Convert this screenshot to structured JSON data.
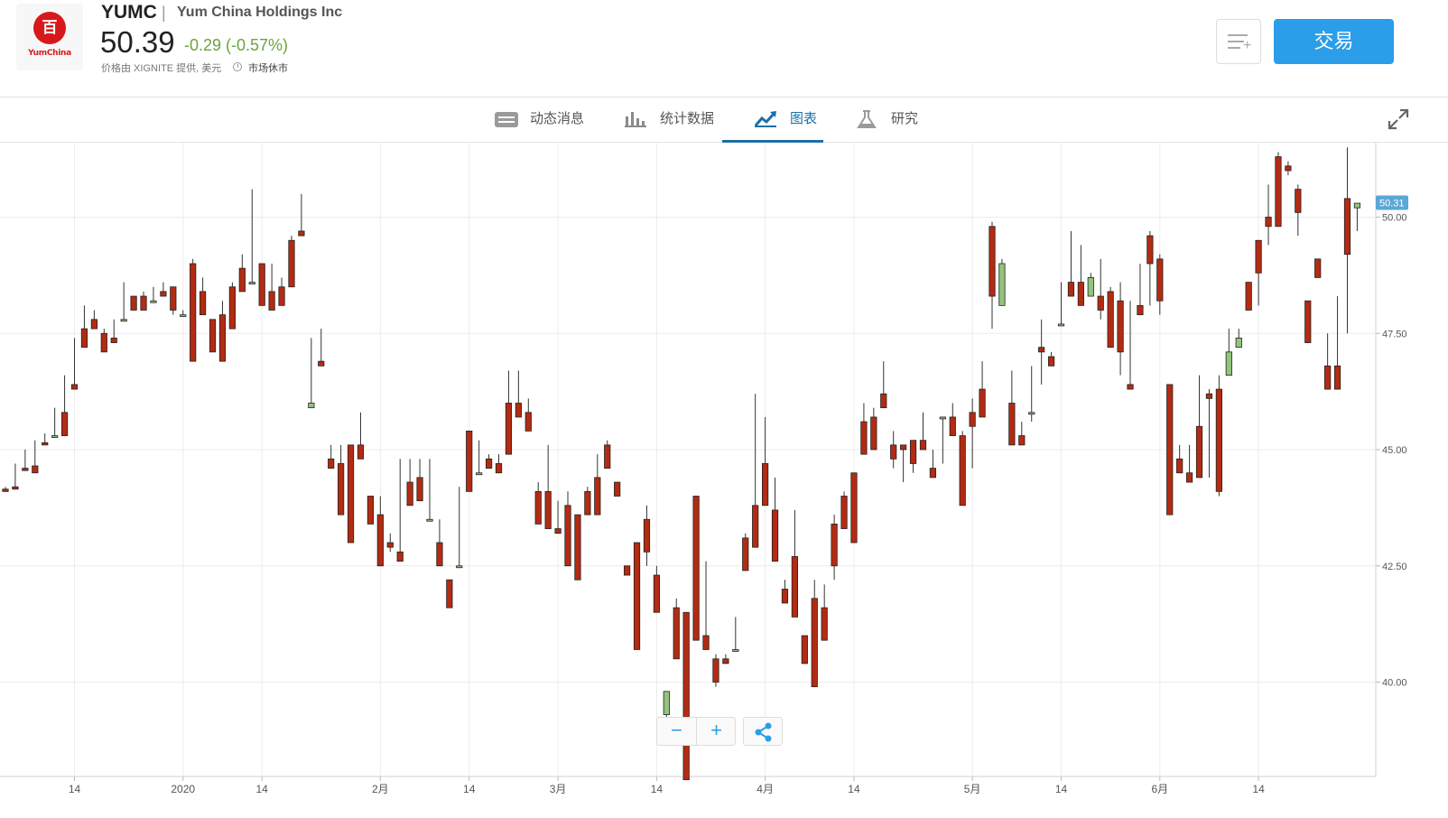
{
  "header": {
    "logo_glyph": "百",
    "logo_text": "YumChina",
    "ticker": "YUMC",
    "separator": "|",
    "company": "Yum China Holdings Inc",
    "price": "50.39",
    "change": "-0.29 (-0.57%)",
    "change_color": "#6aa43a",
    "provider": "价格由 XIGNITE 提供, 美元",
    "market_status": "市场休市",
    "watchlist_icon": "add-to-list-icon",
    "trade_label": "交易"
  },
  "tabs": [
    {
      "label": "动态消息",
      "icon": "news-icon",
      "active": false
    },
    {
      "label": "统计数据",
      "icon": "bar-stats-icon",
      "active": false
    },
    {
      "label": "图表",
      "icon": "chart-trend-icon",
      "active": true
    },
    {
      "label": "研究",
      "icon": "flask-icon",
      "active": false
    }
  ],
  "colors": {
    "up": "#93c47d",
    "down": "#b32b12",
    "accent": "#2a9ee8",
    "tab_active": "#1d6fa8",
    "last_price_tag": "#5ba7d6"
  },
  "controls": {
    "zoom_out": "−",
    "zoom_in": "+",
    "share_icon": "share-icon",
    "expand_icon": "expand-icon"
  },
  "chart_data": {
    "type": "candlestick",
    "last_price_label": "50.31",
    "y_ticks": [
      40.0,
      42.5,
      45.0,
      47.5,
      50.0
    ],
    "y_tick_labels": [
      "40.00",
      "42.50",
      "45.00",
      "47.50",
      "50.00"
    ],
    "x_ticks": [
      {
        "index": 7,
        "label": "14"
      },
      {
        "index": 18,
        "label": "2020"
      },
      {
        "index": 26,
        "label": "14"
      },
      {
        "index": 38,
        "label": "2月"
      },
      {
        "index": 47,
        "label": "14"
      },
      {
        "index": 56,
        "label": "3月"
      },
      {
        "index": 66,
        "label": "14"
      },
      {
        "index": 77,
        "label": "4月"
      },
      {
        "index": 86,
        "label": "14"
      },
      {
        "index": 98,
        "label": "5月"
      },
      {
        "index": 107,
        "label": "14"
      },
      {
        "index": 117,
        "label": "6月"
      },
      {
        "index": 127,
        "label": "14"
      }
    ],
    "candles": [
      [
        44.15,
        44.1,
        44.2,
        44.2
      ],
      [
        44.2,
        44.15,
        44.7,
        44.6
      ],
      [
        44.6,
        44.55,
        45.0,
        44.85
      ],
      [
        44.65,
        44.5,
        45.2,
        45.15
      ],
      [
        45.15,
        45.1,
        45.35,
        45.3
      ],
      [
        45.3,
        45.3,
        45.9,
        45.8
      ],
      [
        45.8,
        45.3,
        46.6,
        46.4
      ],
      [
        46.4,
        46.3,
        47.4,
        47.6
      ],
      [
        47.6,
        47.2,
        48.1,
        47.9
      ],
      [
        47.8,
        47.6,
        48.0,
        47.7
      ],
      [
        47.5,
        47.1,
        47.6,
        47.4
      ],
      [
        47.4,
        47.3,
        47.8,
        47.8
      ],
      [
        47.8,
        47.8,
        48.6,
        48.3
      ],
      [
        48.3,
        48.0,
        48.3,
        48.6
      ],
      [
        48.3,
        48.0,
        48.4,
        48.2
      ],
      [
        48.2,
        48.2,
        48.5,
        48.4
      ],
      [
        48.4,
        48.3,
        48.6,
        48.5
      ],
      [
        48.5,
        48.0,
        48.5,
        47.9
      ],
      [
        47.9,
        47.9,
        48.0,
        48.0
      ],
      [
        49.0,
        46.9,
        49.1,
        46.9
      ],
      [
        48.4,
        47.9,
        48.7,
        48.3
      ],
      [
        47.8,
        47.1,
        47.8,
        47.7
      ],
      [
        47.9,
        46.9,
        48.2,
        47.4
      ],
      [
        48.5,
        47.6,
        48.6,
        47.7
      ],
      [
        48.9,
        48.4,
        49.2,
        48.5
      ],
      [
        48.6,
        48.6,
        50.6,
        50.2
      ],
      [
        49.0,
        48.1,
        49.0,
        48.2
      ],
      [
        48.4,
        48.0,
        49.0,
        48.6
      ],
      [
        48.5,
        48.1,
        48.7,
        48.2
      ],
      [
        49.5,
        48.5,
        49.6,
        48.5
      ],
      [
        49.7,
        49.6,
        50.5,
        49.6
      ],
      [
        45.9,
        46.0,
        47.4,
        47.3
      ],
      [
        46.9,
        46.8,
        47.6,
        46.9
      ],
      [
        44.8,
        44.6,
        45.1,
        45.0
      ],
      [
        44.7,
        43.6,
        45.1,
        44.1
      ],
      [
        45.1,
        43.0,
        45.1,
        43.0
      ],
      [
        45.1,
        44.8,
        45.8,
        44.9
      ],
      [
        44.0,
        43.4,
        44.0,
        43.5
      ],
      [
        43.6,
        42.5,
        44.0,
        43.2
      ],
      [
        43.0,
        42.9,
        43.2,
        42.8
      ],
      [
        42.8,
        42.6,
        44.8,
        42.6
      ],
      [
        44.3,
        43.8,
        44.8,
        43.8
      ],
      [
        44.4,
        43.9,
        44.8,
        44.4
      ],
      [
        43.5,
        43.5,
        44.8,
        43.9
      ],
      [
        43.0,
        42.5,
        43.5,
        43.5
      ],
      [
        42.2,
        41.6,
        42.2,
        42.0
      ],
      [
        42.5,
        42.5,
        44.2,
        43.9
      ],
      [
        45.4,
        44.1,
        45.4,
        44.1
      ],
      [
        44.5,
        44.5,
        45.2,
        45.8
      ],
      [
        44.8,
        44.6,
        44.9,
        45.0
      ],
      [
        44.7,
        44.5,
        44.9,
        44.9
      ],
      [
        46.0,
        44.9,
        46.7,
        45.0
      ],
      [
        46.0,
        45.7,
        46.7,
        45.9
      ],
      [
        45.8,
        45.4,
        46.1,
        45.7
      ],
      [
        44.1,
        43.4,
        44.3,
        43.4
      ],
      [
        44.1,
        43.3,
        45.1,
        43.4
      ],
      [
        43.3,
        43.2,
        43.9,
        43.8
      ],
      [
        43.8,
        42.5,
        44.1,
        42.5
      ],
      [
        43.6,
        42.2,
        43.6,
        42.2
      ],
      [
        44.1,
        43.6,
        44.2,
        44.1
      ],
      [
        44.4,
        43.6,
        44.9,
        43.6
      ],
      [
        45.1,
        44.6,
        45.2,
        44.6
      ],
      [
        44.3,
        44.0,
        44.3,
        44.2
      ],
      [
        42.5,
        42.3,
        42.5,
        42.3
      ],
      [
        43.0,
        40.7,
        43.0,
        40.7
      ],
      [
        43.5,
        42.8,
        43.8,
        42.5
      ],
      [
        42.3,
        41.5,
        42.5,
        41.5
      ],
      [
        39.3,
        39.8,
        39.8,
        39.2
      ],
      [
        41.6,
        40.5,
        41.8,
        40.5
      ],
      [
        41.5,
        37.9,
        41.5,
        38.2
      ],
      [
        44.0,
        40.9,
        44.0,
        43.4
      ],
      [
        41.0,
        40.7,
        42.6,
        40.9
      ],
      [
        40.5,
        40.0,
        40.6,
        39.9
      ],
      [
        40.5,
        40.4,
        40.6,
        40.5
      ],
      [
        40.7,
        40.7,
        41.4,
        41.5
      ],
      [
        43.1,
        42.4,
        43.2,
        43.0
      ],
      [
        43.8,
        42.9,
        46.2,
        44.4
      ],
      [
        44.7,
        43.8,
        45.7,
        44.7
      ],
      [
        43.7,
        42.6,
        44.4,
        42.6
      ],
      [
        42.0,
        41.7,
        42.2,
        42.2
      ],
      [
        42.7,
        41.4,
        43.7,
        41.4
      ],
      [
        41.0,
        40.4,
        41.0,
        41.0
      ],
      [
        41.8,
        39.9,
        42.2,
        41.9
      ],
      [
        41.6,
        40.9,
        42.1,
        41.4
      ],
      [
        43.4,
        42.5,
        43.6,
        42.2
      ],
      [
        44.0,
        43.3,
        44.1,
        43.6
      ],
      [
        44.5,
        43.0,
        44.5,
        43.0
      ],
      [
        45.6,
        44.9,
        46.0,
        45.6
      ],
      [
        45.7,
        45.0,
        45.9,
        45.7
      ],
      [
        46.2,
        45.9,
        46.9,
        46.2
      ],
      [
        45.1,
        44.8,
        45.4,
        44.6
      ],
      [
        45.1,
        45.0,
        45.1,
        44.3
      ],
      [
        45.2,
        44.7,
        45.2,
        44.5
      ],
      [
        45.2,
        45.0,
        45.8,
        45.2
      ],
      [
        44.6,
        44.4,
        45.0,
        44.7
      ],
      [
        45.7,
        45.7,
        45.7,
        44.7
      ],
      [
        45.7,
        45.3,
        46.0,
        45.5
      ],
      [
        45.3,
        43.8,
        45.4,
        43.9
      ],
      [
        45.8,
        45.5,
        46.1,
        44.6
      ],
      [
        46.3,
        45.7,
        46.9,
        45.7
      ],
      [
        49.8,
        48.3,
        49.9,
        47.6
      ],
      [
        48.1,
        49.0,
        49.1,
        48.3
      ],
      [
        46.0,
        45.1,
        46.7,
        47.0
      ],
      [
        45.3,
        45.1,
        45.6,
        45.4
      ],
      [
        45.8,
        45.8,
        46.8,
        45.6
      ],
      [
        47.2,
        47.1,
        47.8,
        46.4
      ],
      [
        47.0,
        46.8,
        47.1,
        47.2
      ],
      [
        47.7,
        47.7,
        48.6,
        48.5
      ],
      [
        48.6,
        48.3,
        49.7,
        49.0
      ],
      [
        48.6,
        48.1,
        49.4,
        49.0
      ],
      [
        48.3,
        48.7,
        48.8,
        48.5
      ],
      [
        48.3,
        48.0,
        49.1,
        47.8
      ],
      [
        48.4,
        47.2,
        48.5,
        48.1
      ],
      [
        48.2,
        47.1,
        48.6,
        46.6
      ],
      [
        46.4,
        46.3,
        48.2,
        47.9
      ],
      [
        48.1,
        47.9,
        49.0,
        47.9
      ],
      [
        49.6,
        49.0,
        49.7,
        48.1
      ],
      [
        49.1,
        48.2,
        49.2,
        47.9
      ],
      [
        46.4,
        43.6,
        46.4,
        43.6
      ],
      [
        44.8,
        44.5,
        45.1,
        45.3
      ],
      [
        44.5,
        44.3,
        45.1,
        44.6
      ],
      [
        45.5,
        44.4,
        46.6,
        44.5
      ],
      [
        46.2,
        46.1,
        46.3,
        44.4
      ],
      [
        46.3,
        44.1,
        46.6,
        44.0
      ],
      [
        46.6,
        47.1,
        47.6,
        47.0
      ],
      [
        47.2,
        47.4,
        47.6,
        47.5
      ],
      [
        48.6,
        48.0,
        48.0,
        48.6
      ],
      [
        49.5,
        48.8,
        49.5,
        48.1
      ],
      [
        50.0,
        49.8,
        50.7,
        49.4
      ],
      [
        51.3,
        49.8,
        51.4,
        49.9
      ],
      [
        51.1,
        51.0,
        51.2,
        50.9
      ],
      [
        50.6,
        50.1,
        50.7,
        49.6
      ],
      [
        48.2,
        47.3,
        48.2,
        48.6
      ],
      [
        49.1,
        48.7,
        49.1,
        49.6
      ],
      [
        46.8,
        46.3,
        47.5,
        46.7
      ],
      [
        46.8,
        46.3,
        48.3,
        47.2
      ],
      [
        50.4,
        49.2,
        51.5,
        47.5
      ],
      [
        50.2,
        50.3,
        49.8,
        49.7
      ]
    ]
  }
}
